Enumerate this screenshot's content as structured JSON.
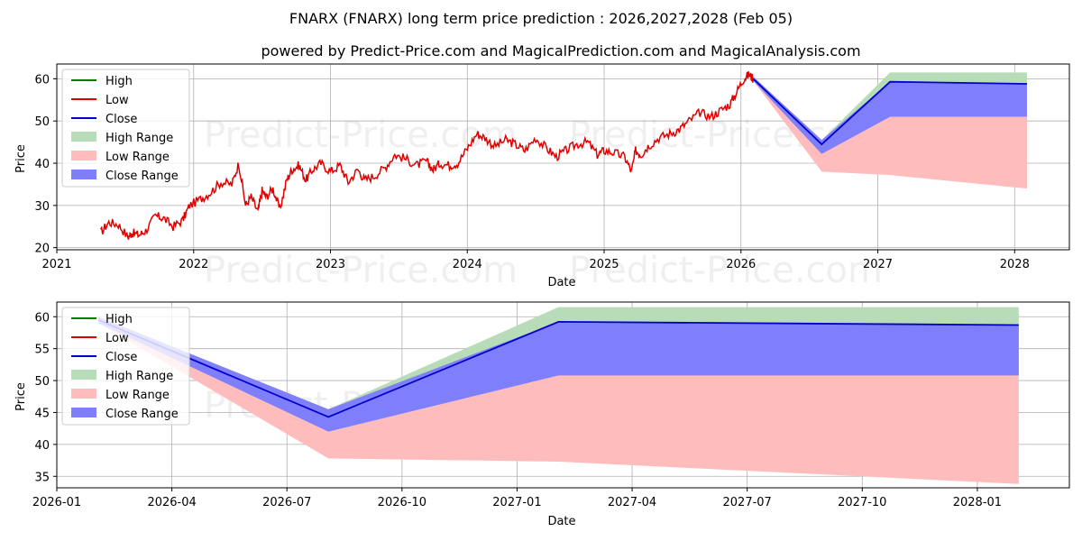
{
  "title": "FNARX (FNARX) long term price prediction : 2026,2027,2028 (Feb 05)",
  "subtitle": "powered by Predict-Price.com and MagicalPrediction.com and MagicalAnalysis.com",
  "watermark": "Predict-Price.com",
  "colors": {
    "high": "#008000",
    "low": "#e00000",
    "close": "#0000cc",
    "high_range": "#b7dcb7",
    "low_range": "#ffbcbc",
    "close_range": "#7f7ffb"
  },
  "chart_data": [
    {
      "type": "line",
      "xlabel": "Date",
      "ylabel": "Price",
      "xlim": [
        2021.0,
        2028.4
      ],
      "ylim": [
        19.5,
        63.5
      ],
      "xticks": [
        2021,
        2022,
        2023,
        2024,
        2025,
        2026,
        2027,
        2028
      ],
      "xtick_labels": [
        "2021",
        "2022",
        "2023",
        "2024",
        "2025",
        "2026",
        "2027",
        "2028"
      ],
      "yticks": [
        20,
        30,
        40,
        50,
        60
      ],
      "ytick_labels": [
        "20",
        "30",
        "40",
        "50",
        "60"
      ],
      "grid": true,
      "legend": [
        "High",
        "Low",
        "Close",
        "High Range",
        "Low Range",
        "Close Range"
      ],
      "legend_loc": "upper-left",
      "history": {
        "x": [
          2021.32,
          2021.38,
          2021.45,
          2021.52,
          2021.55,
          2021.6,
          2021.65,
          2021.72,
          2021.78,
          2021.85,
          2021.92,
          2021.97,
          2022.05,
          2022.12,
          2022.2,
          2022.28,
          2022.33,
          2022.38,
          2022.42,
          2022.47,
          2022.5,
          2022.53,
          2022.58,
          2022.63,
          2022.68,
          2022.72,
          2022.77,
          2022.82,
          2022.87,
          2022.93,
          2023.0,
          2023.07,
          2023.13,
          2023.2,
          2023.25,
          2023.32,
          2023.4,
          2023.47,
          2023.55,
          2023.63,
          2023.7,
          2023.75,
          2023.8,
          2023.87,
          2023.93,
          2024.0,
          2024.07,
          2024.13,
          2024.2,
          2024.28,
          2024.35,
          2024.42,
          2024.5,
          2024.58,
          2024.65,
          2024.72,
          2024.8,
          2024.88,
          2024.95,
          2025.0,
          2025.07,
          2025.15,
          2025.2,
          2025.23,
          2025.27,
          2025.32,
          2025.4,
          2025.48,
          2025.55,
          2025.62,
          2025.7,
          2025.78,
          2025.85,
          2025.92,
          2025.97,
          2026.02,
          2026.06,
          2026.09
        ],
        "values": [
          23.5,
          26.0,
          25.5,
          22.5,
          23.5,
          23.0,
          24.0,
          27.5,
          27.0,
          25.0,
          26.5,
          30.0,
          31.5,
          33.0,
          35.5,
          35.0,
          40.0,
          30.0,
          32.0,
          28.5,
          33.5,
          32.0,
          34.0,
          29.0,
          36.0,
          38.5,
          39.5,
          36.0,
          38.5,
          40.0,
          38.0,
          39.5,
          35.5,
          38.5,
          36.0,
          37.0,
          39.0,
          42.0,
          41.0,
          39.5,
          40.5,
          38.5,
          40.0,
          39.5,
          40.0,
          43.5,
          47.0,
          46.0,
          44.0,
          45.5,
          44.5,
          43.0,
          46.0,
          43.5,
          41.5,
          43.0,
          44.5,
          45.0,
          42.0,
          43.0,
          42.5,
          41.5,
          38.0,
          43.0,
          42.0,
          44.0,
          46.0,
          47.0,
          48.0,
          50.0,
          52.0,
          51.0,
          52.5,
          54.0,
          57.0,
          60.0,
          61.0,
          60.0
        ]
      },
      "prediction": {
        "x": [
          2026.09,
          2026.59,
          2027.09,
          2028.09
        ],
        "high": [
          60.5,
          45.5,
          61.5,
          61.5
        ],
        "low": [
          59.5,
          38.0,
          37.2,
          34.0
        ],
        "close": [
          60.0,
          44.5,
          59.3,
          58.8
        ],
        "high_range_lower": [
          59.5,
          42.2,
          51.0,
          51.0
        ],
        "low_range_upper": [
          59.5,
          42.2,
          51.0,
          51.0
        ],
        "close_range_lower": [
          59.5,
          42.2,
          51.0,
          51.0
        ],
        "close_range_upper": [
          60.5,
          45.5,
          59.3,
          58.8
        ]
      }
    },
    {
      "type": "line",
      "xlabel": "Date",
      "ylabel": "Price",
      "xlim": [
        2026.0,
        2028.2
      ],
      "ylim": [
        33.2,
        62.3
      ],
      "xticks": [
        2026.0,
        2026.25,
        2026.5,
        2026.75,
        2027.0,
        2027.25,
        2027.5,
        2027.75,
        2028.0
      ],
      "xtick_labels": [
        "2026-01",
        "2026-04",
        "2026-07",
        "2026-10",
        "2027-01",
        "2027-04",
        "2027-07",
        "2027-10",
        "2028-01"
      ],
      "yticks": [
        35,
        40,
        45,
        50,
        55,
        60
      ],
      "ytick_labels": [
        "35",
        "40",
        "45",
        "50",
        "55",
        "60"
      ],
      "grid": true,
      "legend": [
        "High",
        "Low",
        "Close",
        "High Range",
        "Low Range",
        "Close Range"
      ],
      "legend_loc": "upper-left",
      "prediction": {
        "x": [
          2026.09,
          2026.59,
          2027.09,
          2028.09
        ],
        "high": [
          60.0,
          45.5,
          61.5,
          61.5
        ],
        "low": [
          59.0,
          37.8,
          37.3,
          33.8
        ],
        "close": [
          59.5,
          44.3,
          59.2,
          58.7
        ],
        "high_range_lower": [
          59.0,
          42.0,
          50.8,
          50.8
        ],
        "low_range_upper": [
          59.0,
          42.0,
          50.8,
          50.8
        ],
        "close_range_lower": [
          59.0,
          42.0,
          50.8,
          50.8
        ],
        "close_range_upper": [
          60.0,
          45.5,
          59.2,
          58.7
        ]
      }
    }
  ]
}
